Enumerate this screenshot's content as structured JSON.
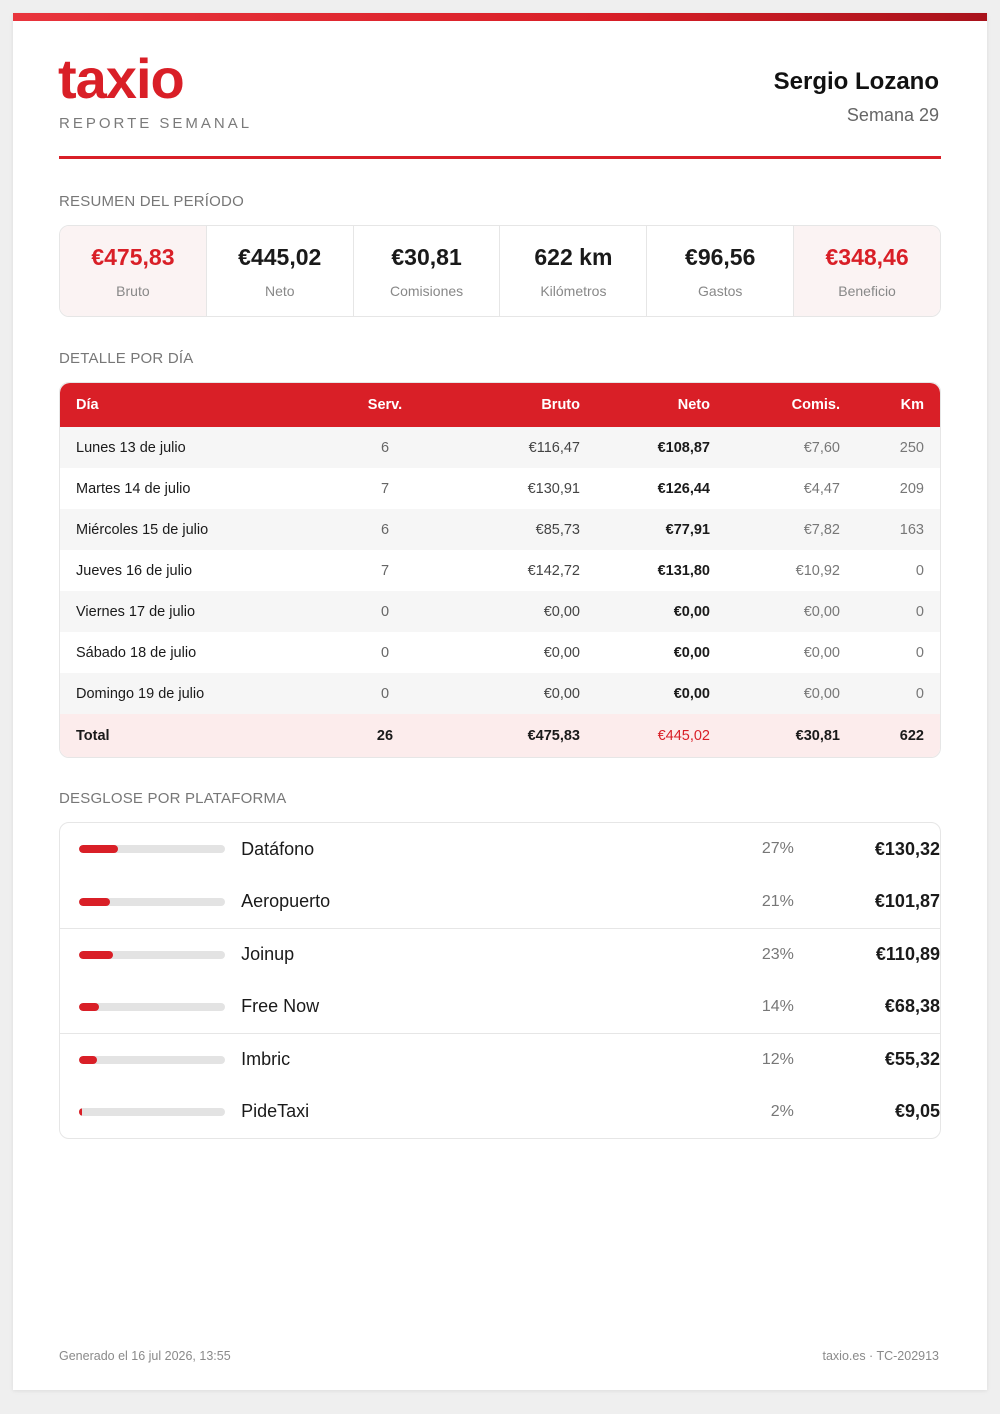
{
  "header": {
    "logo": "taxio",
    "subtitle": "REPORTE SEMANAL",
    "driver_name": "Sergio Lozano",
    "week": "Semana 29"
  },
  "summary": {
    "title": "RESUMEN DEL PERÍODO",
    "cards": [
      {
        "value": "€475,83",
        "label": "Bruto"
      },
      {
        "value": "€445,02",
        "label": "Neto"
      },
      {
        "value": "€30,81",
        "label": "Comisiones"
      },
      {
        "value": "622 km",
        "label": "Kilómetros"
      },
      {
        "value": "€96,56",
        "label": "Gastos"
      },
      {
        "value": "€348,46",
        "label": "Beneficio"
      }
    ]
  },
  "daily": {
    "title": "DETALLE POR DÍA",
    "columns": [
      "Día",
      "Serv.",
      "Bruto",
      "Neto",
      "Comis.",
      "Km"
    ],
    "rows": [
      [
        "Lunes 13 de julio",
        "6",
        "€116,47",
        "€108,87",
        "€7,60",
        "250"
      ],
      [
        "Martes 14 de julio",
        "7",
        "€130,91",
        "€126,44",
        "€4,47",
        "209"
      ],
      [
        "Miércoles 15 de julio",
        "6",
        "€85,73",
        "€77,91",
        "€7,82",
        "163"
      ],
      [
        "Jueves 16 de julio",
        "7",
        "€142,72",
        "€131,80",
        "€10,92",
        "0"
      ],
      [
        "Viernes 17 de julio",
        "0",
        "€0,00",
        "€0,00",
        "€0,00",
        "0"
      ],
      [
        "Sábado 18 de julio",
        "0",
        "€0,00",
        "€0,00",
        "€0,00",
        "0"
      ],
      [
        "Domingo 19 de julio",
        "0",
        "€0,00",
        "€0,00",
        "€0,00",
        "0"
      ]
    ],
    "total": [
      "Total",
      "26",
      "€475,83",
      "€445,02",
      "€30,81",
      "622"
    ]
  },
  "platforms": {
    "title": "DESGLOSE POR PLATAFORMA",
    "items": [
      {
        "name": "Datáfono",
        "percent": "27%",
        "amount": "€130,32",
        "share": 0.27
      },
      {
        "name": "Aeropuerto",
        "percent": "21%",
        "amount": "€101,87",
        "share": 0.21
      },
      {
        "name": "Joinup",
        "percent": "23%",
        "amount": "€110,89",
        "share": 0.23
      },
      {
        "name": "Free Now",
        "percent": "14%",
        "amount": "€68,38",
        "share": 0.14
      },
      {
        "name": "Imbric",
        "percent": "12%",
        "amount": "€55,32",
        "share": 0.12
      },
      {
        "name": "PideTaxi",
        "percent": "2%",
        "amount": "€9,05",
        "share": 0.02
      }
    ]
  },
  "footer": {
    "generated": "Generado el 16 jul 2026, 13:55",
    "reference": "taxio.es · TC-202913"
  },
  "colors": {
    "accent": "#d91f27"
  }
}
